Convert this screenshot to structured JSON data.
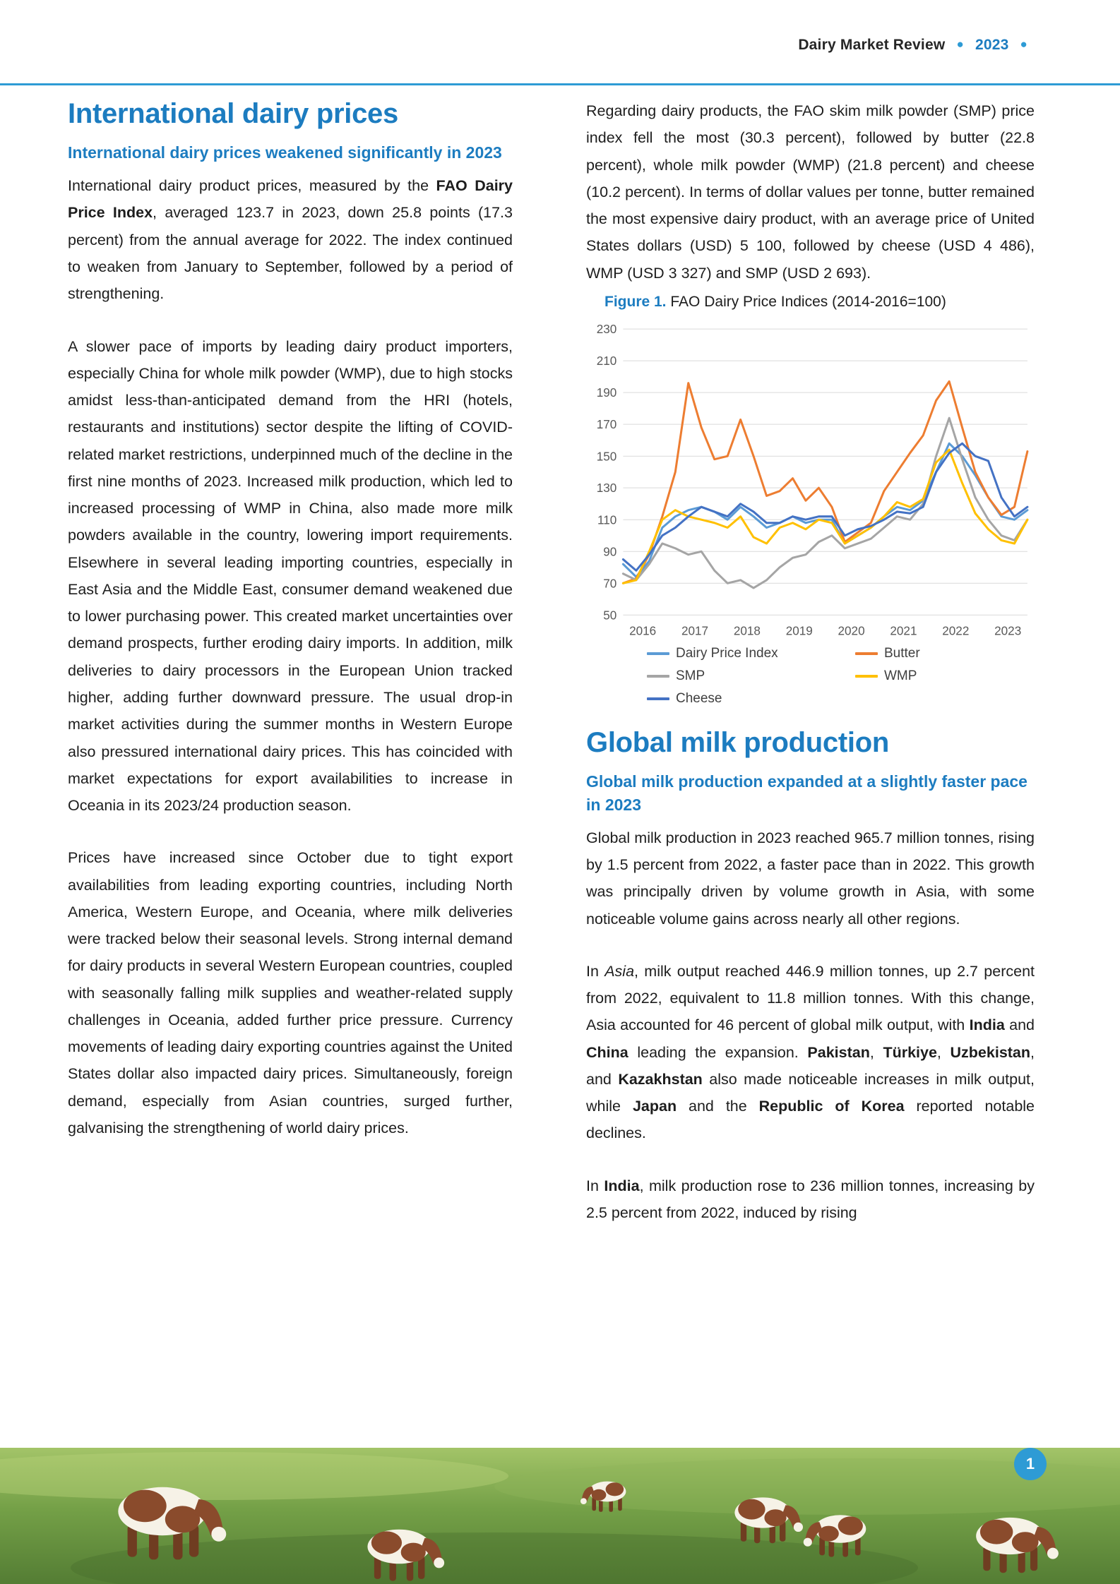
{
  "header": {
    "title": "Dairy Market Review",
    "year": "2023",
    "dot": "●"
  },
  "left_column": {
    "heading": "International dairy prices",
    "subheading": "International dairy prices weakened significantly in 2023",
    "paragraphs": [
      [
        {
          "t": "International dairy product prices, measured by the "
        },
        {
          "t": "FAO Dairy Price Index",
          "b": true
        },
        {
          "t": ", averaged 123.7 in 2023, down 25.8 points (17.3 percent) from the annual average for 2022. The index continued to weaken from January to September, followed by a period of strengthening."
        }
      ],
      [
        {
          "t": "A slower pace of imports by leading dairy product importers, especially China for whole milk powder (WMP), due to high stocks amidst less-than-anticipated demand from the HRI (hotels, restaurants and institutions) sector despite the lifting of COVID-related market restrictions, underpinned much of the decline in the first nine months of 2023. Increased milk production, which led to increased processing of WMP in China, also made more milk powders available in the country, lowering import requirements. Elsewhere in several leading importing countries, especially in East Asia and the Middle East, consumer demand weakened due to lower purchasing power. This created market uncertainties over demand prospects, further eroding dairy imports. In addition, milk deliveries to dairy processors in the European Union tracked higher, adding further downward pressure. The usual drop-in market activities during the summer months in Western Europe also pressured international dairy prices. This has coincided with market expectations for export availabilities to increase in Oceania in its 2023/24 production season."
        }
      ],
      [
        {
          "t": "Prices have increased since October due to tight export availabilities from leading exporting countries, including North America, Western Europe, and Oceania, where milk deliveries were tracked below their seasonal levels. Strong internal demand for dairy products in several Western European countries, coupled with seasonally falling milk supplies and weather-related supply challenges in Oceania, added further price pressure. Currency movements of leading dairy exporting countries against the United States dollar also impacted dairy prices. Simultaneously, foreign demand, especially from Asian countries, surged further, galvanising the strengthening of world dairy prices."
        }
      ]
    ]
  },
  "right_column": {
    "intro_paragraphs": [
      [
        {
          "t": "Regarding dairy products, the FAO skim milk powder (SMP) price index fell the most (30.3 percent), followed by butter (22.8 percent), whole milk powder (WMP) (21.8 percent) and cheese (10.2 percent). In terms of dollar values per tonne, butter remained the most expensive dairy product, with an average price of United States dollars (USD) 5 100, followed by cheese (USD 4 486), WMP (USD 3 327) and SMP (USD 2 693)."
        }
      ]
    ],
    "figure": {
      "label": "Figure 1.",
      "caption": "FAO Dairy Price Indices (2014-2016=100)"
    },
    "heading_global": "Global milk production",
    "subheading_global": "Global milk production expanded at a slightly faster pace in 2023",
    "milk_paragraphs": [
      [
        {
          "t": "Global milk production in 2023 reached 965.7 million tonnes, rising by 1.5 percent from 2022, a faster pace than in 2022. This growth was principally driven by volume growth in Asia, with some noticeable volume gains across nearly all other regions."
        }
      ],
      [
        {
          "t": "In "
        },
        {
          "t": "Asia",
          "i": true
        },
        {
          "t": ", milk output reached 446.9 million tonnes, up 2.7 percent from 2022, equivalent to 11.8 million tonnes. With this change, Asia accounted for 46 percent of global milk output, with "
        },
        {
          "t": "India",
          "b": true
        },
        {
          "t": " and "
        },
        {
          "t": "China",
          "b": true
        },
        {
          "t": " leading the expansion. "
        },
        {
          "t": "Pakistan",
          "b": true
        },
        {
          "t": ", "
        },
        {
          "t": "Türkiye",
          "b": true
        },
        {
          "t": ", "
        },
        {
          "t": "Uzbekistan",
          "b": true
        },
        {
          "t": ", and "
        },
        {
          "t": "Kazakhstan",
          "b": true
        },
        {
          "t": " also made noticeable increases in milk output, while "
        },
        {
          "t": "Japan",
          "b": true
        },
        {
          "t": " and the "
        },
        {
          "t": "Republic of Korea",
          "b": true
        },
        {
          "t": " reported notable declines."
        }
      ],
      [
        {
          "t": "In "
        },
        {
          "t": "India",
          "b": true
        },
        {
          "t": ", milk production rose to 236 million tonnes, increasing by 2.5 percent from 2022, induced by rising"
        }
      ]
    ]
  },
  "chart_data": {
    "type": "line",
    "title": "FAO Dairy Price Indices (2014-2016=100)",
    "xlabel": "",
    "ylabel": "",
    "ylim": [
      50,
      230
    ],
    "ytick_step": 20,
    "grid": "horizontal",
    "legend_position": "bottom",
    "x_labels": [
      "2016",
      "2017",
      "2018",
      "2019",
      "2020",
      "2021",
      "2022",
      "2023"
    ],
    "x_note": "quarterly values per year, 2016Q1-2023Q4",
    "series": [
      {
        "name": "Dairy Price Index",
        "color": "#5B9BD5",
        "values": [
          82,
          74,
          84,
          105,
          112,
          116,
          118,
          115,
          110,
          118,
          112,
          105,
          108,
          112,
          108,
          110,
          110,
          95,
          100,
          105,
          112,
          118,
          116,
          122,
          140,
          158,
          150,
          138,
          124,
          112,
          110,
          116
        ]
      },
      {
        "name": "Butter",
        "color": "#ED7D31",
        "values": [
          70,
          73,
          88,
          112,
          140,
          196,
          168,
          148,
          150,
          173,
          150,
          125,
          128,
          136,
          122,
          130,
          118,
          96,
          102,
          108,
          128,
          140,
          152,
          163,
          185,
          197,
          168,
          140,
          124,
          113,
          118,
          153
        ]
      },
      {
        "name": "SMP",
        "color": "#A5A5A5",
        "values": [
          76,
          72,
          82,
          95,
          92,
          88,
          90,
          78,
          70,
          72,
          67,
          72,
          80,
          86,
          88,
          96,
          100,
          92,
          95,
          98,
          105,
          112,
          110,
          120,
          150,
          174,
          148,
          124,
          110,
          100,
          97,
          110
        ]
      },
      {
        "name": "WMP",
        "color": "#FFC000",
        "values": [
          70,
          72,
          90,
          110,
          116,
          112,
          110,
          108,
          105,
          112,
          99,
          95,
          105,
          108,
          104,
          110,
          108,
          95,
          100,
          105,
          112,
          121,
          118,
          123,
          146,
          154,
          133,
          114,
          104,
          97,
          95,
          110
        ]
      },
      {
        "name": "Cheese",
        "color": "#4472C4",
        "values": [
          85,
          78,
          88,
          100,
          105,
          112,
          118,
          115,
          112,
          120,
          115,
          108,
          108,
          112,
          110,
          112,
          112,
          100,
          104,
          106,
          110,
          115,
          114,
          118,
          140,
          152,
          158,
          150,
          147,
          124,
          112,
          118
        ]
      }
    ]
  },
  "footer": {
    "page_number": "1"
  },
  "colors": {
    "accent_blue": "#1c7cc0",
    "rule_blue": "#2e9bd5",
    "badge_blue": "#2e9bd5"
  }
}
